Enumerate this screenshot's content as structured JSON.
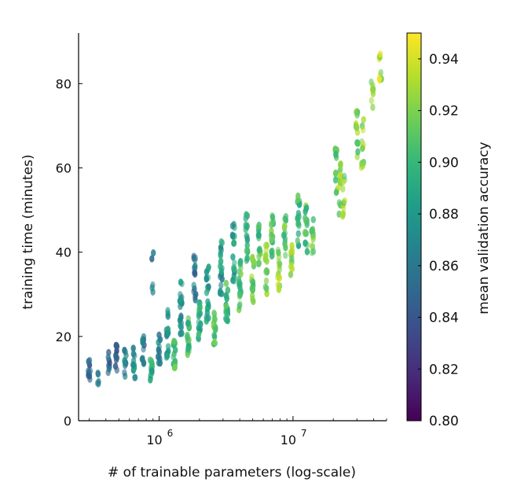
{
  "chart_data": {
    "type": "scatter",
    "title": "",
    "xlabel": "# of trainable parameters (log-scale)",
    "ylabel": "training time (minutes)",
    "x_scale": "log",
    "xlim": [
      250000,
      50000000
    ],
    "ylim": [
      0,
      92
    ],
    "x_ticks": [
      {
        "value": 1000000,
        "base": "10",
        "exp": "6"
      },
      {
        "value": 10000000,
        "base": "10",
        "exp": "7"
      }
    ],
    "y_ticks": [
      0,
      20,
      40,
      60,
      80
    ],
    "grid": false,
    "colorbar": {
      "label": "mean validation accuracy",
      "range": [
        0.8,
        0.95
      ],
      "ticks": [
        "0.80",
        "0.82",
        "0.84",
        "0.86",
        "0.88",
        "0.90",
        "0.92",
        "0.94"
      ],
      "colormap": "viridis"
    },
    "colormap_stops": [
      "#440154",
      "#482878",
      "#3e4a89",
      "#31688e",
      "#26828e",
      "#1f9e89",
      "#35b779",
      "#6ece58",
      "#b5de2b",
      "#fde725"
    ],
    "clusters": [
      {
        "x": 300000,
        "y": 12,
        "spread": 3.5,
        "acc": 0.845,
        "n": 10
      },
      {
        "x": 350000,
        "y": 10,
        "spread": 1.5,
        "acc": 0.86,
        "n": 6
      },
      {
        "x": 420000,
        "y": 13,
        "spread": 3.5,
        "acc": 0.85,
        "n": 8
      },
      {
        "x": 480000,
        "y": 15,
        "spread": 4.0,
        "acc": 0.845,
        "n": 10
      },
      {
        "x": 560000,
        "y": 14,
        "spread": 3.5,
        "acc": 0.865,
        "n": 10
      },
      {
        "x": 650000,
        "y": 14,
        "spread": 4.0,
        "acc": 0.875,
        "n": 12
      },
      {
        "x": 760000,
        "y": 16,
        "spread": 4.0,
        "acc": 0.86,
        "n": 12
      },
      {
        "x": 870000,
        "y": 12,
        "spread": 2.5,
        "acc": 0.895,
        "n": 16
      },
      {
        "x": 900000,
        "y": 35,
        "spread": 5.0,
        "acc": 0.855,
        "n": 5
      },
      {
        "x": 1000000,
        "y": 17,
        "spread": 4.0,
        "acc": 0.87,
        "n": 14
      },
      {
        "x": 1150000,
        "y": 21,
        "spread": 6.0,
        "acc": 0.875,
        "n": 18
      },
      {
        "x": 1300000,
        "y": 16,
        "spread": 3.5,
        "acc": 0.905,
        "n": 18
      },
      {
        "x": 1450000,
        "y": 26,
        "spread": 7.0,
        "acc": 0.87,
        "n": 20
      },
      {
        "x": 1650000,
        "y": 20,
        "spread": 4.5,
        "acc": 0.9,
        "n": 20
      },
      {
        "x": 1850000,
        "y": 34,
        "spread": 6.0,
        "acc": 0.86,
        "n": 16
      },
      {
        "x": 2000000,
        "y": 24,
        "spread": 5.0,
        "acc": 0.895,
        "n": 20
      },
      {
        "x": 2300000,
        "y": 30,
        "spread": 7.0,
        "acc": 0.885,
        "n": 22
      },
      {
        "x": 2600000,
        "y": 22,
        "spread": 4.0,
        "acc": 0.91,
        "n": 18
      },
      {
        "x": 2900000,
        "y": 36,
        "spread": 7.0,
        "acc": 0.88,
        "n": 20
      },
      {
        "x": 3200000,
        "y": 28,
        "spread": 5.0,
        "acc": 0.9,
        "n": 20
      },
      {
        "x": 3600000,
        "y": 40,
        "spread": 7.0,
        "acc": 0.885,
        "n": 20
      },
      {
        "x": 4000000,
        "y": 32,
        "spread": 6.0,
        "acc": 0.905,
        "n": 20
      },
      {
        "x": 4500000,
        "y": 44,
        "spread": 6.0,
        "acc": 0.89,
        "n": 18
      },
      {
        "x": 5000000,
        "y": 34,
        "spread": 6.0,
        "acc": 0.915,
        "n": 18
      },
      {
        "x": 5600000,
        "y": 42,
        "spread": 6.0,
        "acc": 0.905,
        "n": 18
      },
      {
        "x": 6300000,
        "y": 36,
        "spread": 6.0,
        "acc": 0.92,
        "n": 16
      },
      {
        "x": 7000000,
        "y": 44,
        "spread": 5.0,
        "acc": 0.91,
        "n": 16
      },
      {
        "x": 7800000,
        "y": 36,
        "spread": 5.0,
        "acc": 0.925,
        "n": 14
      },
      {
        "x": 8700000,
        "y": 44,
        "spread": 5.0,
        "acc": 0.915,
        "n": 14
      },
      {
        "x": 9800000,
        "y": 38,
        "spread": 4.0,
        "acc": 0.92,
        "n": 12
      },
      {
        "x": 11000000,
        "y": 48,
        "spread": 7.0,
        "acc": 0.9,
        "n": 16
      },
      {
        "x": 12500000,
        "y": 45,
        "spread": 6.0,
        "acc": 0.91,
        "n": 16
      },
      {
        "x": 14000000,
        "y": 44,
        "spread": 5.0,
        "acc": 0.915,
        "n": 14
      },
      {
        "x": 21000000,
        "y": 60,
        "spread": 6.0,
        "acc": 0.915,
        "n": 14
      },
      {
        "x": 22500000,
        "y": 55,
        "spread": 6.0,
        "acc": 0.92,
        "n": 14
      },
      {
        "x": 24000000,
        "y": 53,
        "spread": 5.0,
        "acc": 0.925,
        "n": 10
      },
      {
        "x": 30000000,
        "y": 68,
        "spread": 6.0,
        "acc": 0.92,
        "n": 14
      },
      {
        "x": 33000000,
        "y": 66,
        "spread": 6.0,
        "acc": 0.925,
        "n": 12
      },
      {
        "x": 39000000,
        "y": 77,
        "spread": 3.5,
        "acc": 0.925,
        "n": 8
      },
      {
        "x": 45000000,
        "y": 84,
        "spread": 4.0,
        "acc": 0.93,
        "n": 10
      }
    ]
  }
}
